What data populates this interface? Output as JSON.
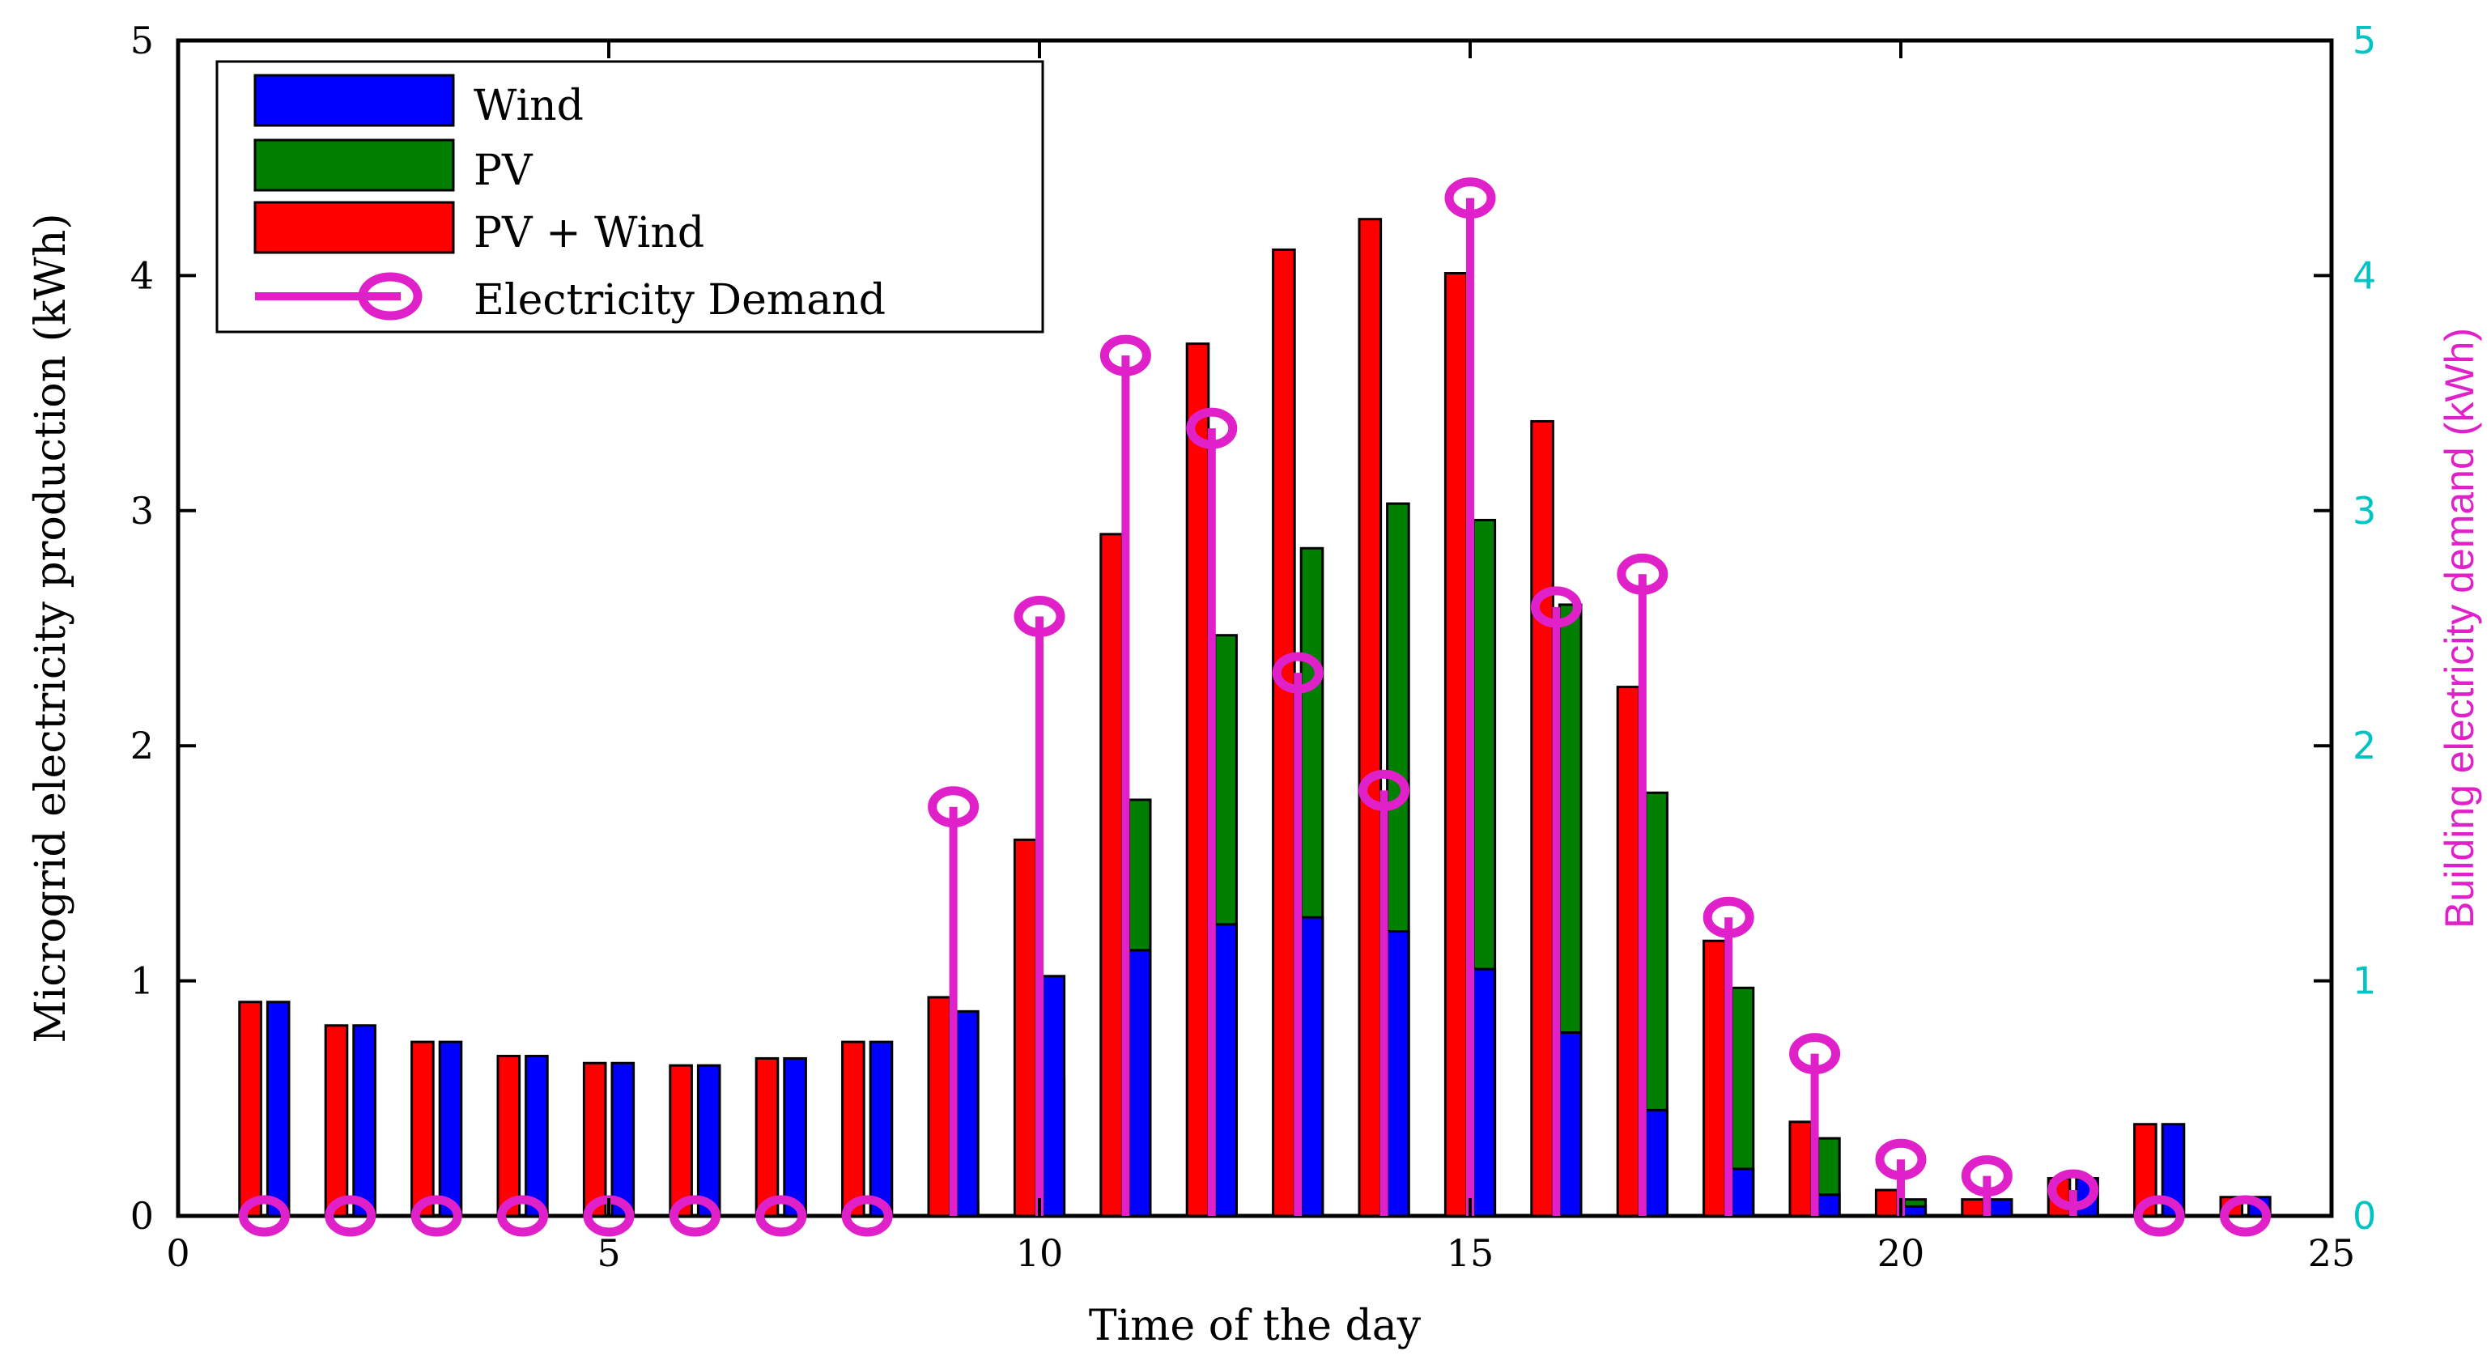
{
  "chart_data": {
    "type": "bar",
    "title": "",
    "xlabel": "Time of the day",
    "ylabel": "Microgrid electricity production (kWh)",
    "ylabel_right": "Building electricity demand (kWh)",
    "xlim": [
      0,
      25
    ],
    "ylim": [
      0,
      5
    ],
    "ylim_right": [
      0,
      5
    ],
    "x_ticks": [
      "0",
      "5",
      "10",
      "15",
      "20",
      "25"
    ],
    "y_ticks": [
      "0",
      "1",
      "2",
      "3",
      "4",
      "5"
    ],
    "y_ticks_right": [
      "0",
      "1",
      "2",
      "3",
      "4",
      "5"
    ],
    "grid": false,
    "legend_position": "top-left",
    "x": [
      1,
      2,
      3,
      4,
      5,
      6,
      7,
      8,
      9,
      10,
      11,
      12,
      13,
      14,
      15,
      16,
      17,
      18,
      19,
      20,
      21,
      22,
      23,
      24
    ],
    "series": [
      {
        "name": "Wind",
        "color": "#0000ff",
        "values": [
          0.91,
          0.81,
          0.74,
          0.68,
          0.65,
          0.64,
          0.67,
          0.74,
          0.87,
          1.02,
          1.13,
          1.24,
          1.27,
          1.21,
          1.05,
          0.78,
          0.45,
          0.2,
          0.09,
          0.04,
          0.07,
          0.16,
          0.39,
          0.08
        ]
      },
      {
        "name": "PV",
        "color": "#007f00",
        "values": [
          0,
          0,
          0,
          0,
          0,
          0,
          0,
          0,
          0.06,
          0.58,
          1.77,
          2.47,
          2.84,
          3.03,
          2.96,
          2.6,
          1.8,
          0.97,
          0.33,
          0.07,
          0,
          0,
          0,
          0
        ]
      },
      {
        "name": "PV + Wind",
        "color": "#ff0000",
        "values": [
          0.91,
          0.81,
          0.74,
          0.68,
          0.65,
          0.64,
          0.67,
          0.74,
          0.93,
          1.6,
          2.9,
          3.71,
          4.11,
          4.24,
          4.01,
          3.38,
          2.25,
          1.17,
          0.4,
          0.11,
          0.07,
          0.16,
          0.39,
          0.08
        ]
      },
      {
        "name": "Electricity Demand",
        "color": "#e020c8",
        "axis": "right",
        "type": "stem",
        "values": [
          0,
          0,
          0,
          0,
          0,
          0,
          0,
          0,
          1.74,
          2.55,
          3.66,
          3.35,
          2.31,
          1.81,
          4.33,
          2.59,
          2.73,
          1.27,
          0.69,
          0.24,
          0.17,
          0.11,
          0,
          0
        ]
      }
    ]
  }
}
